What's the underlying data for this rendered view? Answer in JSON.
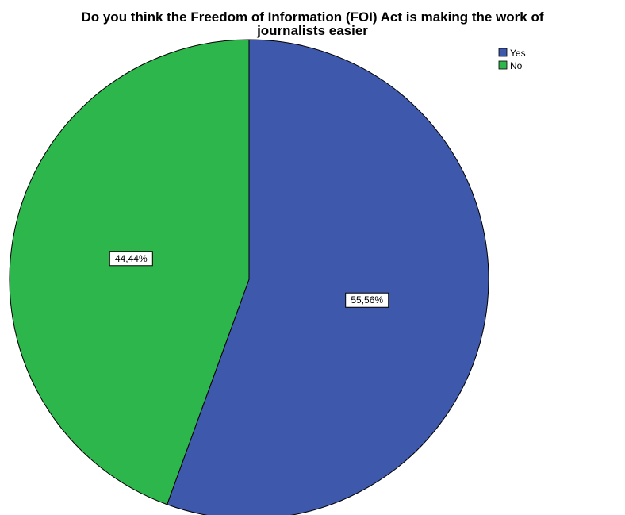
{
  "chart_data": {
    "type": "pie",
    "title_lines": [
      "Do you think the Freedom of Information (FOI) Act is making the work of",
      "journalists easier"
    ],
    "slices": [
      {
        "label": "Yes",
        "value": 55.56,
        "value_label": "55,56%",
        "color": "#3e58ac"
      },
      {
        "label": "No",
        "value": 44.44,
        "value_label": "44,44%",
        "color": "#2db64b"
      }
    ],
    "legend": {
      "placement": "top-right",
      "items": [
        {
          "label": "Yes",
          "color": "#3e58ac"
        },
        {
          "label": "No",
          "color": "#2db64b"
        }
      ]
    },
    "start_angle": "12 o'clock",
    "direction": "clockwise"
  }
}
